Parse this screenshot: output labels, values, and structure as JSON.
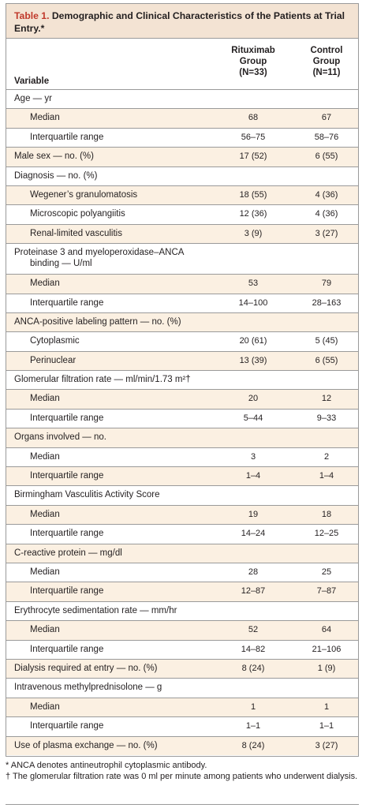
{
  "table": {
    "title_number": "Table 1.",
    "title_text": " Demographic and Clinical Characteristics of the Patients at Trial Entry.*",
    "col_variable": "Variable",
    "col1": [
      "Rituximab",
      "Group",
      "(N=33)"
    ],
    "col2": [
      "Control",
      "Group",
      "(N=11)"
    ],
    "rows": [
      {
        "label": "Age — yr",
        "v1": "",
        "v2": "",
        "sub": false,
        "shade": false
      },
      {
        "label": "Median",
        "v1": "68",
        "v2": "67",
        "sub": true,
        "shade": true
      },
      {
        "label": "Interquartile range",
        "v1": "56–75",
        "v2": "58–76",
        "sub": true,
        "shade": false
      },
      {
        "label": "Male sex — no. (%)",
        "v1": "17 (52)",
        "v2": "6 (55)",
        "sub": false,
        "shade": true
      },
      {
        "label": "Diagnosis — no. (%)",
        "v1": "",
        "v2": "",
        "sub": false,
        "shade": false
      },
      {
        "label": "Wegener’s granulomatosis",
        "v1": "18 (55)",
        "v2": "4 (36)",
        "sub": true,
        "shade": true
      },
      {
        "label": "Microscopic polyangiitis",
        "v1": "12 (36)",
        "v2": "4 (36)",
        "sub": true,
        "shade": false
      },
      {
        "label": "Renal-limited vasculitis",
        "v1": "3 (9)",
        "v2": "3 (27)",
        "sub": true,
        "shade": true
      },
      {
        "label": "Proteinase 3 and myeloperoxidase–ANCA",
        "label2": "binding — U/ml",
        "v1": "",
        "v2": "",
        "sub": false,
        "shade": false,
        "tall": true
      },
      {
        "label": "Median",
        "v1": "53",
        "v2": "79",
        "sub": true,
        "shade": true
      },
      {
        "label": "Interquartile range",
        "v1": "14–100",
        "v2": "28–163",
        "sub": true,
        "shade": false
      },
      {
        "label": "ANCA-positive labeling pattern — no. (%)",
        "v1": "",
        "v2": "",
        "sub": false,
        "shade": true
      },
      {
        "label": "Cytoplasmic",
        "v1": "20 (61)",
        "v2": "5 (45)",
        "sub": true,
        "shade": false
      },
      {
        "label": "Perinuclear",
        "v1": "13 (39)",
        "v2": "6 (55)",
        "sub": true,
        "shade": true
      },
      {
        "label": "Glomerular filtration rate — ml/min/1.73 m²†",
        "v1": "",
        "v2": "",
        "sub": false,
        "shade": false
      },
      {
        "label": "Median",
        "v1": "20",
        "v2": "12",
        "sub": true,
        "shade": true
      },
      {
        "label": "Interquartile range",
        "v1": "5–44",
        "v2": "9–33",
        "sub": true,
        "shade": false
      },
      {
        "label": "Organs involved — no.",
        "v1": "",
        "v2": "",
        "sub": false,
        "shade": true
      },
      {
        "label": "Median",
        "v1": "3",
        "v2": "2",
        "sub": true,
        "shade": false
      },
      {
        "label": "Interquartile range",
        "v1": "1–4",
        "v2": "1–4",
        "sub": true,
        "shade": true
      },
      {
        "label": "Birmingham Vasculitis Activity Score",
        "v1": "",
        "v2": "",
        "sub": false,
        "shade": false
      },
      {
        "label": "Median",
        "v1": "19",
        "v2": "18",
        "sub": true,
        "shade": true
      },
      {
        "label": "Interquartile range",
        "v1": "14–24",
        "v2": "12–25",
        "sub": true,
        "shade": false
      },
      {
        "label": "C-reactive protein — mg/dl",
        "v1": "",
        "v2": "",
        "sub": false,
        "shade": true
      },
      {
        "label": "Median",
        "v1": "28",
        "v2": "25",
        "sub": true,
        "shade": false
      },
      {
        "label": "Interquartile range",
        "v1": "12–87",
        "v2": "7–87",
        "sub": true,
        "shade": true
      },
      {
        "label": "Erythrocyte sedimentation rate — mm/hr",
        "v1": "",
        "v2": "",
        "sub": false,
        "shade": false
      },
      {
        "label": "Median",
        "v1": "52",
        "v2": "64",
        "sub": true,
        "shade": true
      },
      {
        "label": "Interquartile range",
        "v1": "14–82",
        "v2": "21–106",
        "sub": true,
        "shade": false
      },
      {
        "label": "Dialysis required at entry — no. (%)",
        "v1": "8 (24)",
        "v2": "1 (9)",
        "sub": false,
        "shade": true
      },
      {
        "label": "Intravenous methylprednisolone — g",
        "v1": "",
        "v2": "",
        "sub": false,
        "shade": false
      },
      {
        "label": "Median",
        "v1": "1",
        "v2": "1",
        "sub": true,
        "shade": true
      },
      {
        "label": "Interquartile range",
        "v1": "1–1",
        "v2": "1–1",
        "sub": true,
        "shade": false
      },
      {
        "label": "Use of plasma exchange — no. (%)",
        "v1": "8 (24)",
        "v2": "3 (27)",
        "sub": false,
        "shade": true
      }
    ]
  },
  "footnotes": [
    "* ANCA denotes antineutrophil cytoplasmic antibody.",
    "† The glomerular filtration rate was 0 ml per minute among patients who underwent dialysis."
  ]
}
